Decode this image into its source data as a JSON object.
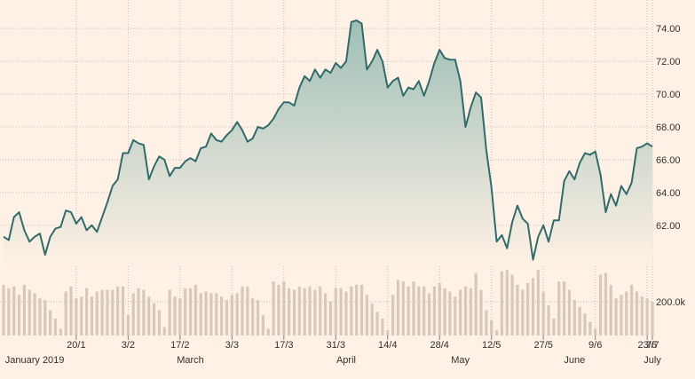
{
  "chart_data": {
    "type": "area",
    "colors": {
      "background": "#fff1e5",
      "line": "#2f6c6c",
      "area_top": "#9ebfb6",
      "area_bottom": "#fff1e5",
      "volume": "#d8c8b7",
      "grid": "#c9bdb2"
    },
    "grid": true,
    "price": {
      "ylim": [
        59.5,
        75.2
      ],
      "y_ticks": [
        "62.00",
        "64.00",
        "66.00",
        "68.00",
        "70.00",
        "72.00",
        "74.00"
      ],
      "values": [
        61.3,
        61.1,
        62.5,
        62.8,
        61.7,
        61.0,
        61.3,
        61.5,
        60.2,
        61.3,
        61.8,
        61.9,
        62.9,
        62.8,
        62.1,
        62.5,
        61.7,
        62.0,
        61.6,
        62.5,
        63.4,
        64.4,
        64.8,
        66.4,
        66.4,
        67.2,
        67.0,
        66.9,
        64.8,
        65.6,
        66.2,
        66.0,
        65.0,
        65.5,
        65.5,
        65.9,
        66.1,
        65.9,
        66.7,
        66.8,
        67.6,
        67.2,
        67.1,
        67.5,
        67.8,
        68.3,
        67.8,
        67.1,
        67.3,
        68.0,
        67.9,
        68.1,
        68.5,
        69.1,
        69.5,
        69.5,
        69.3,
        70.4,
        71.1,
        70.8,
        71.5,
        71.0,
        71.5,
        71.3,
        71.9,
        71.6,
        72.0,
        74.4,
        74.5,
        74.3,
        71.5,
        72.0,
        72.7,
        72.0,
        70.4,
        70.8,
        71.0,
        69.9,
        70.4,
        70.3,
        70.8,
        69.9,
        70.8,
        71.9,
        72.7,
        72.2,
        72.1,
        72.1,
        70.8,
        68.0,
        69.2,
        70.1,
        69.8,
        66.6,
        64.3,
        61.0,
        61.4,
        60.6,
        62.2,
        63.2,
        62.4,
        62.1,
        59.9,
        61.3,
        62.0,
        61.0,
        62.3,
        62.3,
        64.7,
        65.3,
        64.8,
        65.8,
        66.4,
        66.3,
        66.5,
        65.1,
        62.8,
        63.9,
        63.2,
        64.4,
        63.9,
        64.6,
        66.7,
        66.8,
        67.0,
        66.8
      ]
    },
    "volume": {
      "label": "200.0k",
      "label_value": 200000,
      "ylim": [
        0,
        420000
      ],
      "values": [
        300000,
        280000,
        290000,
        240000,
        300000,
        270000,
        250000,
        220000,
        210000,
        150000,
        100000,
        40000,
        260000,
        290000,
        220000,
        230000,
        280000,
        230000,
        260000,
        270000,
        270000,
        270000,
        290000,
        290000,
        120000,
        250000,
        280000,
        270000,
        230000,
        190000,
        150000,
        50000,
        270000,
        230000,
        220000,
        280000,
        280000,
        300000,
        250000,
        260000,
        250000,
        250000,
        230000,
        210000,
        240000,
        250000,
        290000,
        290000,
        220000,
        210000,
        120000,
        40000,
        320000,
        300000,
        320000,
        280000,
        270000,
        290000,
        280000,
        290000,
        270000,
        290000,
        250000,
        200000,
        280000,
        280000,
        260000,
        290000,
        300000,
        300000,
        240000,
        190000,
        140000,
        100000,
        30000,
        240000,
        330000,
        320000,
        290000,
        320000,
        290000,
        290000,
        250000,
        290000,
        310000,
        280000,
        260000,
        230000,
        270000,
        290000,
        280000,
        370000,
        270000,
        150000,
        90000,
        30000,
        380000,
        390000,
        360000,
        300000,
        270000,
        310000,
        340000,
        390000,
        260000,
        180000,
        100000,
        320000,
        320000,
        270000,
        210000,
        170000,
        130000,
        80000,
        40000,
        360000,
        370000,
        300000,
        220000,
        240000,
        260000,
        300000,
        260000,
        230000,
        220000,
        200000
      ]
    },
    "x_ticks": [
      "20/1",
      "3/2",
      "17/2",
      "3/3",
      "17/3",
      "31/3",
      "14/4",
      "28/4",
      "12/5",
      "27/5",
      "9/6",
      "23/6",
      "7/7"
    ],
    "months": [
      "January 2019",
      "March",
      "April",
      "May",
      "June",
      "July"
    ]
  }
}
